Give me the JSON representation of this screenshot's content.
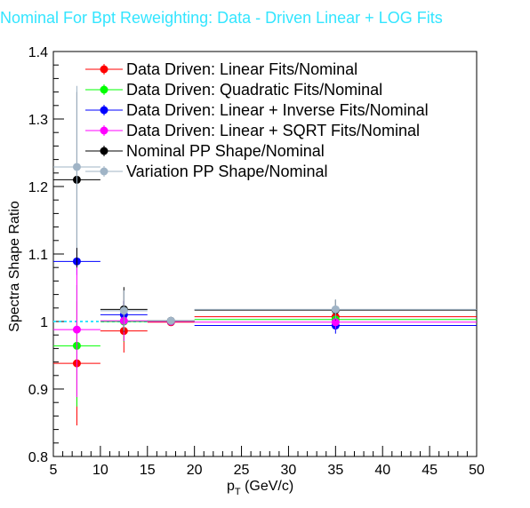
{
  "chart_data": {
    "type": "scatter",
    "title": "Nominal For Bpt Reweighting: Data - Driven Linear + LOG Fits",
    "xlabel_main": "p",
    "xlabel_sub": "T",
    "xlabel_unit": " (GeV/c)",
    "ylabel": "Spectra Shape Ratio",
    "xlim": [
      5,
      50
    ],
    "ylim": [
      0.8,
      1.4
    ],
    "x_ticks": [
      5,
      10,
      15,
      20,
      25,
      30,
      35,
      40,
      45,
      50
    ],
    "x_tick_labels": [
      "5",
      "10",
      "15",
      "20",
      "25",
      "30",
      "35",
      "40",
      "45",
      "50"
    ],
    "y_ticks": [
      0.8,
      0.9,
      1.0,
      1.1,
      1.2,
      1.3,
      1.4
    ],
    "y_tick_labels": [
      "0.8",
      "0.9",
      "1",
      "1.1",
      "1.2",
      "1.3",
      "1.4"
    ],
    "reference_line": {
      "y": 1.0,
      "x": [
        5,
        20
      ],
      "color": "#33e5ff"
    },
    "bins": [
      [
        5,
        10
      ],
      [
        10,
        15
      ],
      [
        15,
        20
      ],
      [
        20,
        50
      ]
    ],
    "bin_centers": [
      7.5,
      12.5,
      17.5,
      35
    ],
    "legend_position": "top-left",
    "series": [
      {
        "name": "Data Driven: Linear Fits/Nominal",
        "color": "#ff0000",
        "values": [
          0.938,
          0.986,
          0.999,
          1.007
        ],
        "errors": [
          0.092,
          0.032,
          0.005,
          0.012
        ]
      },
      {
        "name": "Data Driven: Quadratic Fits/Nominal",
        "color": "#00ff00",
        "values": [
          0.964,
          1.0,
          1.0,
          1.003
        ],
        "errors": [
          0.09,
          0.03,
          0.005,
          0.012
        ]
      },
      {
        "name": "Data Driven: Linear + Inverse Fits/Nominal",
        "color": "#0000ff",
        "values": [
          1.089,
          1.01,
          1.0,
          0.994
        ],
        "errors": [
          0.02,
          0.02,
          0.005,
          0.012
        ]
      },
      {
        "name": "Data Driven: Linear + SQRT Fits/Nominal",
        "color": "#ff00ff",
        "values": [
          0.988,
          1.001,
          1.0,
          0.999
        ],
        "errors": [
          0.1,
          0.03,
          0.005,
          0.01
        ]
      },
      {
        "name": "Nominal PP Shape/Nominal",
        "color": "#000000",
        "values": [
          1.21,
          1.018,
          1.001,
          1.017
        ],
        "errors": [
          0.13,
          0.033,
          0.006,
          0.015
        ]
      },
      {
        "name": "Variation PP Shape/Nominal",
        "color": "#a0b4c6",
        "values": [
          1.229,
          1.016,
          1.001,
          1.018
        ],
        "errors": [
          0.12,
          0.03,
          0.006,
          0.015
        ]
      }
    ]
  }
}
